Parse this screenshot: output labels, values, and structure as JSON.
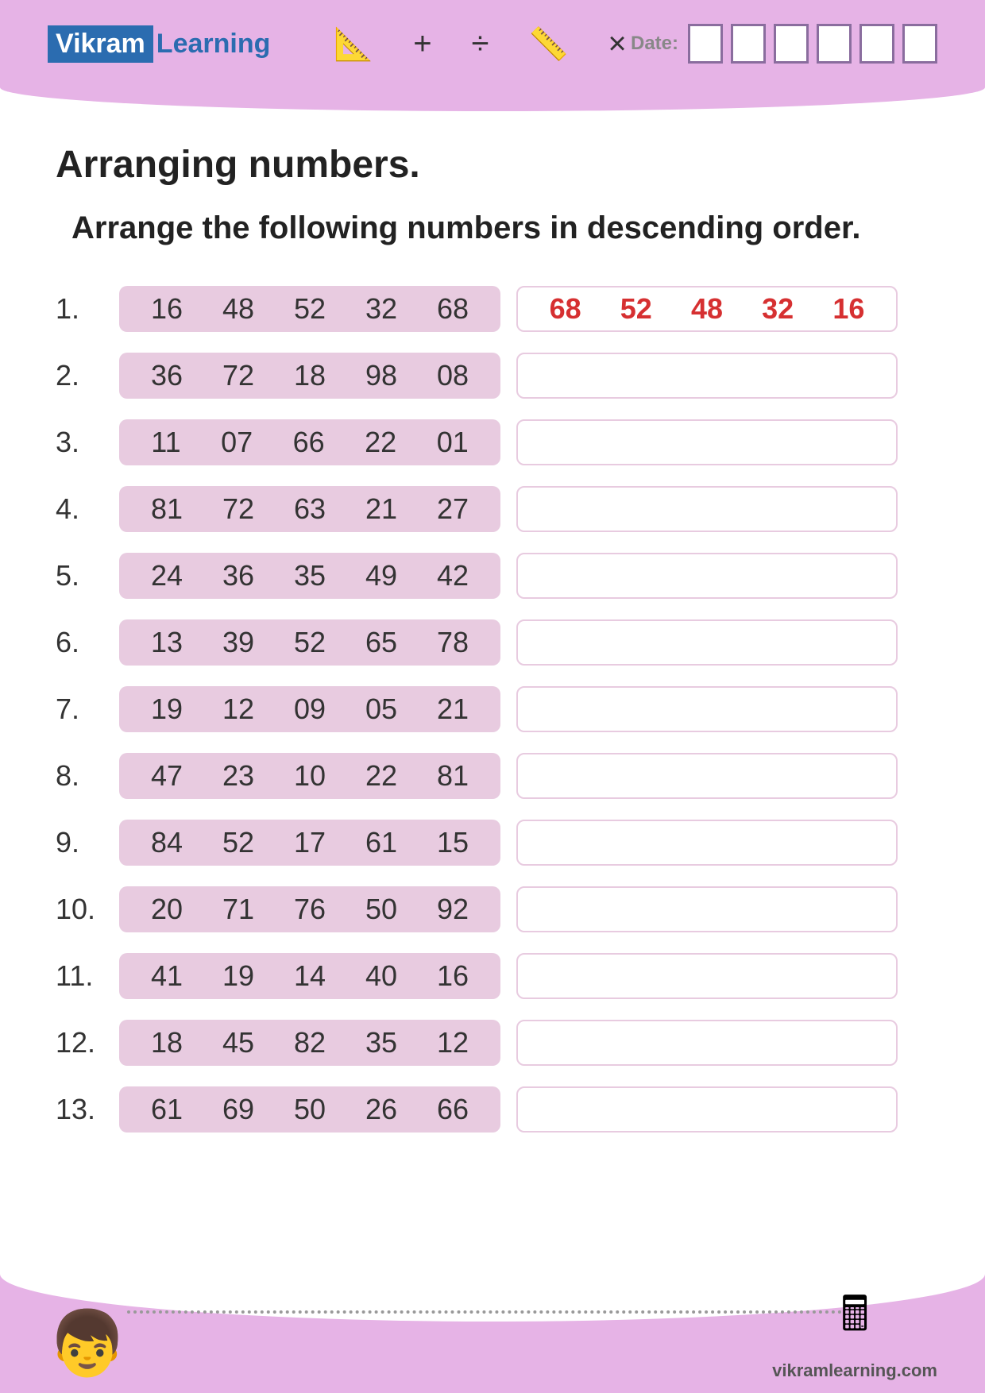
{
  "header": {
    "logo_vikram": "Vikram",
    "logo_learning": "Learning",
    "date_label": "Date:",
    "icons": [
      "📐",
      "+",
      "÷",
      "📏",
      "×"
    ]
  },
  "content": {
    "title": "Arranging numbers.",
    "subtitle": "Arrange the following numbers in descending order."
  },
  "problems": [
    {
      "n": "1.",
      "numbers": [
        "16",
        "48",
        "52",
        "32",
        "68"
      ],
      "answer": [
        "68",
        "52",
        "48",
        "32",
        "16"
      ]
    },
    {
      "n": "2.",
      "numbers": [
        "36",
        "72",
        "18",
        "98",
        "08"
      ],
      "answer": []
    },
    {
      "n": "3.",
      "numbers": [
        "11",
        "07",
        "66",
        "22",
        "01"
      ],
      "answer": []
    },
    {
      "n": "4.",
      "numbers": [
        "81",
        "72",
        "63",
        "21",
        "27"
      ],
      "answer": []
    },
    {
      "n": "5.",
      "numbers": [
        "24",
        "36",
        "35",
        "49",
        "42"
      ],
      "answer": []
    },
    {
      "n": "6.",
      "numbers": [
        "13",
        "39",
        "52",
        "65",
        "78"
      ],
      "answer": []
    },
    {
      "n": "7.",
      "numbers": [
        "19",
        "12",
        "09",
        "05",
        "21"
      ],
      "answer": []
    },
    {
      "n": "8.",
      "numbers": [
        "47",
        "23",
        "10",
        "22",
        "81"
      ],
      "answer": []
    },
    {
      "n": "9.",
      "numbers": [
        "84",
        "52",
        "17",
        "61",
        "15"
      ],
      "answer": []
    },
    {
      "n": "10.",
      "numbers": [
        "20",
        "71",
        "76",
        "50",
        "92"
      ],
      "answer": []
    },
    {
      "n": "11.",
      "numbers": [
        "41",
        "19",
        "14",
        "40",
        "16"
      ],
      "answer": []
    },
    {
      "n": "12.",
      "numbers": [
        "18",
        "45",
        "82",
        "35",
        "12"
      ],
      "answer": []
    },
    {
      "n": "13.",
      "numbers": [
        "61",
        "69",
        "50",
        "26",
        "66"
      ],
      "answer": []
    }
  ],
  "footer": {
    "website": "vikramlearning.com"
  },
  "colors": {
    "header_bg": "#e6b3e6",
    "number_box_bg": "#e8cbe0",
    "answer_border": "#e8cbe0",
    "answer_text": "#d63031",
    "logo_bg": "#2b6cb0"
  }
}
